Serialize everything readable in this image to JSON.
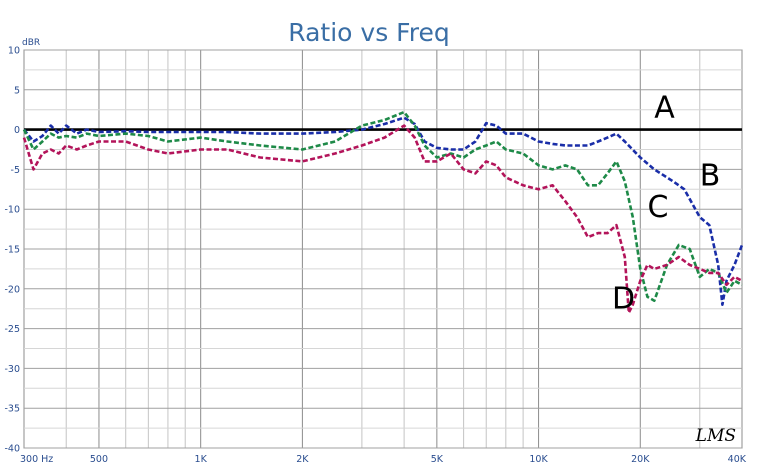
{
  "chart_data": {
    "type": "line",
    "title": "Ratio vs Freq",
    "ylabel": "dBR",
    "xscale": "log",
    "xlim": [
      300,
      40000
    ],
    "ylim": [
      -40,
      10
    ],
    "grid": true,
    "yticks": [
      10,
      5,
      0,
      -5,
      -10,
      -15,
      -20,
      -25,
      -30,
      -35,
      -40
    ],
    "xticks": [
      {
        "value": 300,
        "label": "300 Hz"
      },
      {
        "value": 500,
        "label": "500"
      },
      {
        "value": 1000,
        "label": "1K"
      },
      {
        "value": 2000,
        "label": "2K"
      },
      {
        "value": 5000,
        "label": "5K"
      },
      {
        "value": 10000,
        "label": "10K"
      },
      {
        "value": 20000,
        "label": "20K"
      },
      {
        "value": 40000,
        "label": "40K"
      }
    ],
    "watermark": "LMS",
    "series": [
      {
        "name": "A",
        "color": "#000000",
        "style": "solid",
        "label_at": [
          22000,
          1.5
        ],
        "points": [
          [
            300,
            0
          ],
          [
            40000,
            0
          ]
        ]
      },
      {
        "name": "B",
        "color": "#1a2ea8",
        "style": "dashed",
        "label_at": [
          30000,
          -7
        ],
        "points": [
          [
            300,
            0
          ],
          [
            320,
            -1.5
          ],
          [
            340,
            -0.8
          ],
          [
            360,
            0.5
          ],
          [
            380,
            -0.5
          ],
          [
            400,
            0.5
          ],
          [
            430,
            -0.5
          ],
          [
            460,
            0
          ],
          [
            500,
            -0.3
          ],
          [
            600,
            -0.2
          ],
          [
            700,
            -0.3
          ],
          [
            800,
            -0.3
          ],
          [
            1000,
            -0.3
          ],
          [
            1200,
            -0.3
          ],
          [
            1500,
            -0.5
          ],
          [
            2000,
            -0.5
          ],
          [
            2500,
            -0.3
          ],
          [
            3000,
            0
          ],
          [
            3500,
            0.7
          ],
          [
            4000,
            1.5
          ],
          [
            4300,
            0.7
          ],
          [
            4600,
            -1.5
          ],
          [
            5000,
            -2.3
          ],
          [
            5500,
            -2.5
          ],
          [
            6000,
            -2.5
          ],
          [
            6500,
            -1.5
          ],
          [
            7000,
            0.8
          ],
          [
            7500,
            0.5
          ],
          [
            8000,
            -0.5
          ],
          [
            9000,
            -0.5
          ],
          [
            10000,
            -1.5
          ],
          [
            11000,
            -1.8
          ],
          [
            12000,
            -2
          ],
          [
            14000,
            -2
          ],
          [
            15000,
            -1.5
          ],
          [
            16000,
            -1
          ],
          [
            17000,
            -0.5
          ],
          [
            18000,
            -1.5
          ],
          [
            20000,
            -3.5
          ],
          [
            22000,
            -5
          ],
          [
            25000,
            -6.5
          ],
          [
            27000,
            -7.5
          ],
          [
            30000,
            -11
          ],
          [
            32000,
            -12
          ],
          [
            34000,
            -17
          ],
          [
            35000,
            -22
          ],
          [
            36000,
            -19
          ],
          [
            38000,
            -17
          ],
          [
            40000,
            -14.5
          ]
        ]
      },
      {
        "name": "C",
        "color": "#1e8a48",
        "style": "dashed",
        "label_at": [
          21000,
          -11
        ],
        "points": [
          [
            300,
            0
          ],
          [
            320,
            -2.5
          ],
          [
            340,
            -1.5
          ],
          [
            360,
            -0.5
          ],
          [
            380,
            -1
          ],
          [
            400,
            -0.8
          ],
          [
            430,
            -1
          ],
          [
            460,
            -0.5
          ],
          [
            500,
            -0.8
          ],
          [
            600,
            -0.5
          ],
          [
            700,
            -0.8
          ],
          [
            800,
            -1.5
          ],
          [
            1000,
            -1
          ],
          [
            1200,
            -1.5
          ],
          [
            1500,
            -2
          ],
          [
            2000,
            -2.5
          ],
          [
            2500,
            -1.5
          ],
          [
            3000,
            0.5
          ],
          [
            3500,
            1.2
          ],
          [
            4000,
            2.2
          ],
          [
            4300,
            0.5
          ],
          [
            4600,
            -2
          ],
          [
            5000,
            -3.5
          ],
          [
            5500,
            -3
          ],
          [
            6000,
            -3.5
          ],
          [
            6500,
            -2.5
          ],
          [
            7000,
            -2
          ],
          [
            7500,
            -1.5
          ],
          [
            8000,
            -2.5
          ],
          [
            9000,
            -3
          ],
          [
            10000,
            -4.5
          ],
          [
            11000,
            -5
          ],
          [
            12000,
            -4.5
          ],
          [
            13000,
            -5
          ],
          [
            14000,
            -7
          ],
          [
            15000,
            -7
          ],
          [
            16000,
            -5.5
          ],
          [
            17000,
            -4
          ],
          [
            18000,
            -6.5
          ],
          [
            19000,
            -11
          ],
          [
            20000,
            -17.5
          ],
          [
            21000,
            -21
          ],
          [
            22000,
            -21.5
          ],
          [
            24000,
            -17
          ],
          [
            26000,
            -14.5
          ],
          [
            28000,
            -15
          ],
          [
            30000,
            -18.5
          ],
          [
            32000,
            -17.5
          ],
          [
            34000,
            -18
          ],
          [
            36000,
            -20.5
          ],
          [
            38000,
            -19
          ],
          [
            40000,
            -19.5
          ]
        ]
      },
      {
        "name": "D",
        "color": "#b3145a",
        "style": "dashed",
        "label_at": [
          16500,
          -22.5
        ],
        "points": [
          [
            300,
            -1
          ],
          [
            320,
            -5
          ],
          [
            340,
            -3
          ],
          [
            360,
            -2.5
          ],
          [
            380,
            -3
          ],
          [
            400,
            -2
          ],
          [
            430,
            -2.5
          ],
          [
            460,
            -2
          ],
          [
            500,
            -1.5
          ],
          [
            600,
            -1.5
          ],
          [
            700,
            -2.5
          ],
          [
            800,
            -3
          ],
          [
            1000,
            -2.5
          ],
          [
            1200,
            -2.5
          ],
          [
            1500,
            -3.5
          ],
          [
            2000,
            -4
          ],
          [
            2500,
            -3
          ],
          [
            3000,
            -2
          ],
          [
            3500,
            -1
          ],
          [
            4000,
            0.5
          ],
          [
            4300,
            -1
          ],
          [
            4600,
            -4
          ],
          [
            5000,
            -4
          ],
          [
            5500,
            -3
          ],
          [
            6000,
            -5
          ],
          [
            6500,
            -5.5
          ],
          [
            7000,
            -4
          ],
          [
            7500,
            -4.5
          ],
          [
            8000,
            -6
          ],
          [
            9000,
            -7
          ],
          [
            10000,
            -7.5
          ],
          [
            11000,
            -7
          ],
          [
            12000,
            -9
          ],
          [
            13000,
            -11
          ],
          [
            14000,
            -13.5
          ],
          [
            15000,
            -13
          ],
          [
            16000,
            -13
          ],
          [
            17000,
            -12
          ],
          [
            18000,
            -16
          ],
          [
            18500,
            -23
          ],
          [
            19000,
            -22
          ],
          [
            20000,
            -19
          ],
          [
            21000,
            -17
          ],
          [
            22000,
            -17.5
          ],
          [
            24000,
            -17
          ],
          [
            26000,
            -16
          ],
          [
            28000,
            -17
          ],
          [
            30000,
            -17.5
          ],
          [
            32000,
            -18
          ],
          [
            34000,
            -18
          ],
          [
            36000,
            -19.5
          ],
          [
            38000,
            -18.5
          ],
          [
            40000,
            -19
          ]
        ]
      }
    ]
  }
}
